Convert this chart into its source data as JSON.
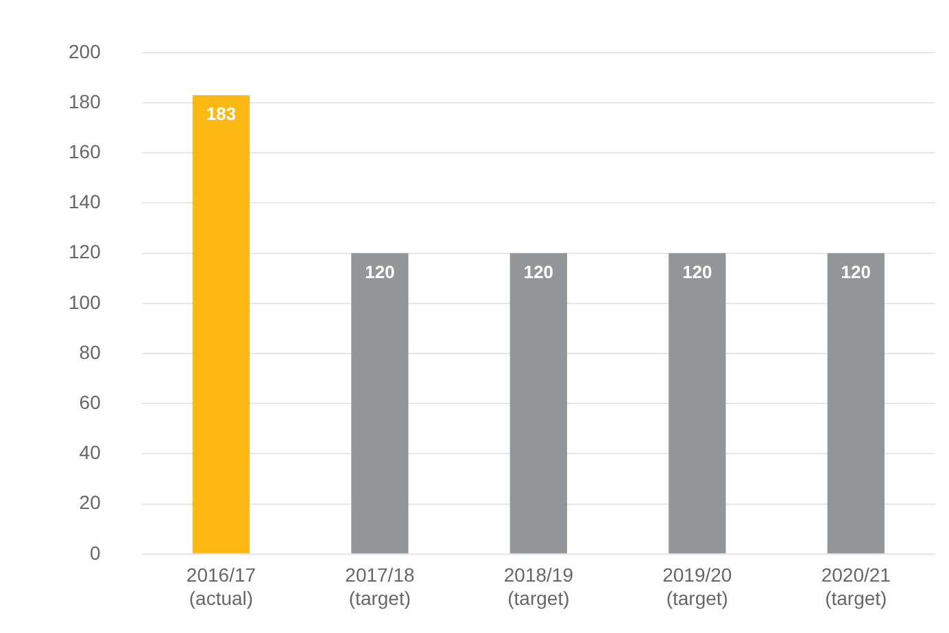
{
  "chart_data": {
    "type": "bar",
    "categories": [
      "2016/17\n(actual)",
      "2017/18\n(target)",
      "2018/19\n(target)",
      "2019/20\n(target)",
      "2020/21\n(target)"
    ],
    "values": [
      183,
      120,
      120,
      120,
      120
    ],
    "colors": [
      "#fdb813",
      "#939598",
      "#939598",
      "#939598",
      "#939598"
    ],
    "ylim": [
      0,
      200
    ],
    "yticks": [
      0,
      20,
      40,
      60,
      80,
      100,
      120,
      140,
      160,
      180,
      200
    ],
    "grid": "y",
    "data_labels": true
  }
}
